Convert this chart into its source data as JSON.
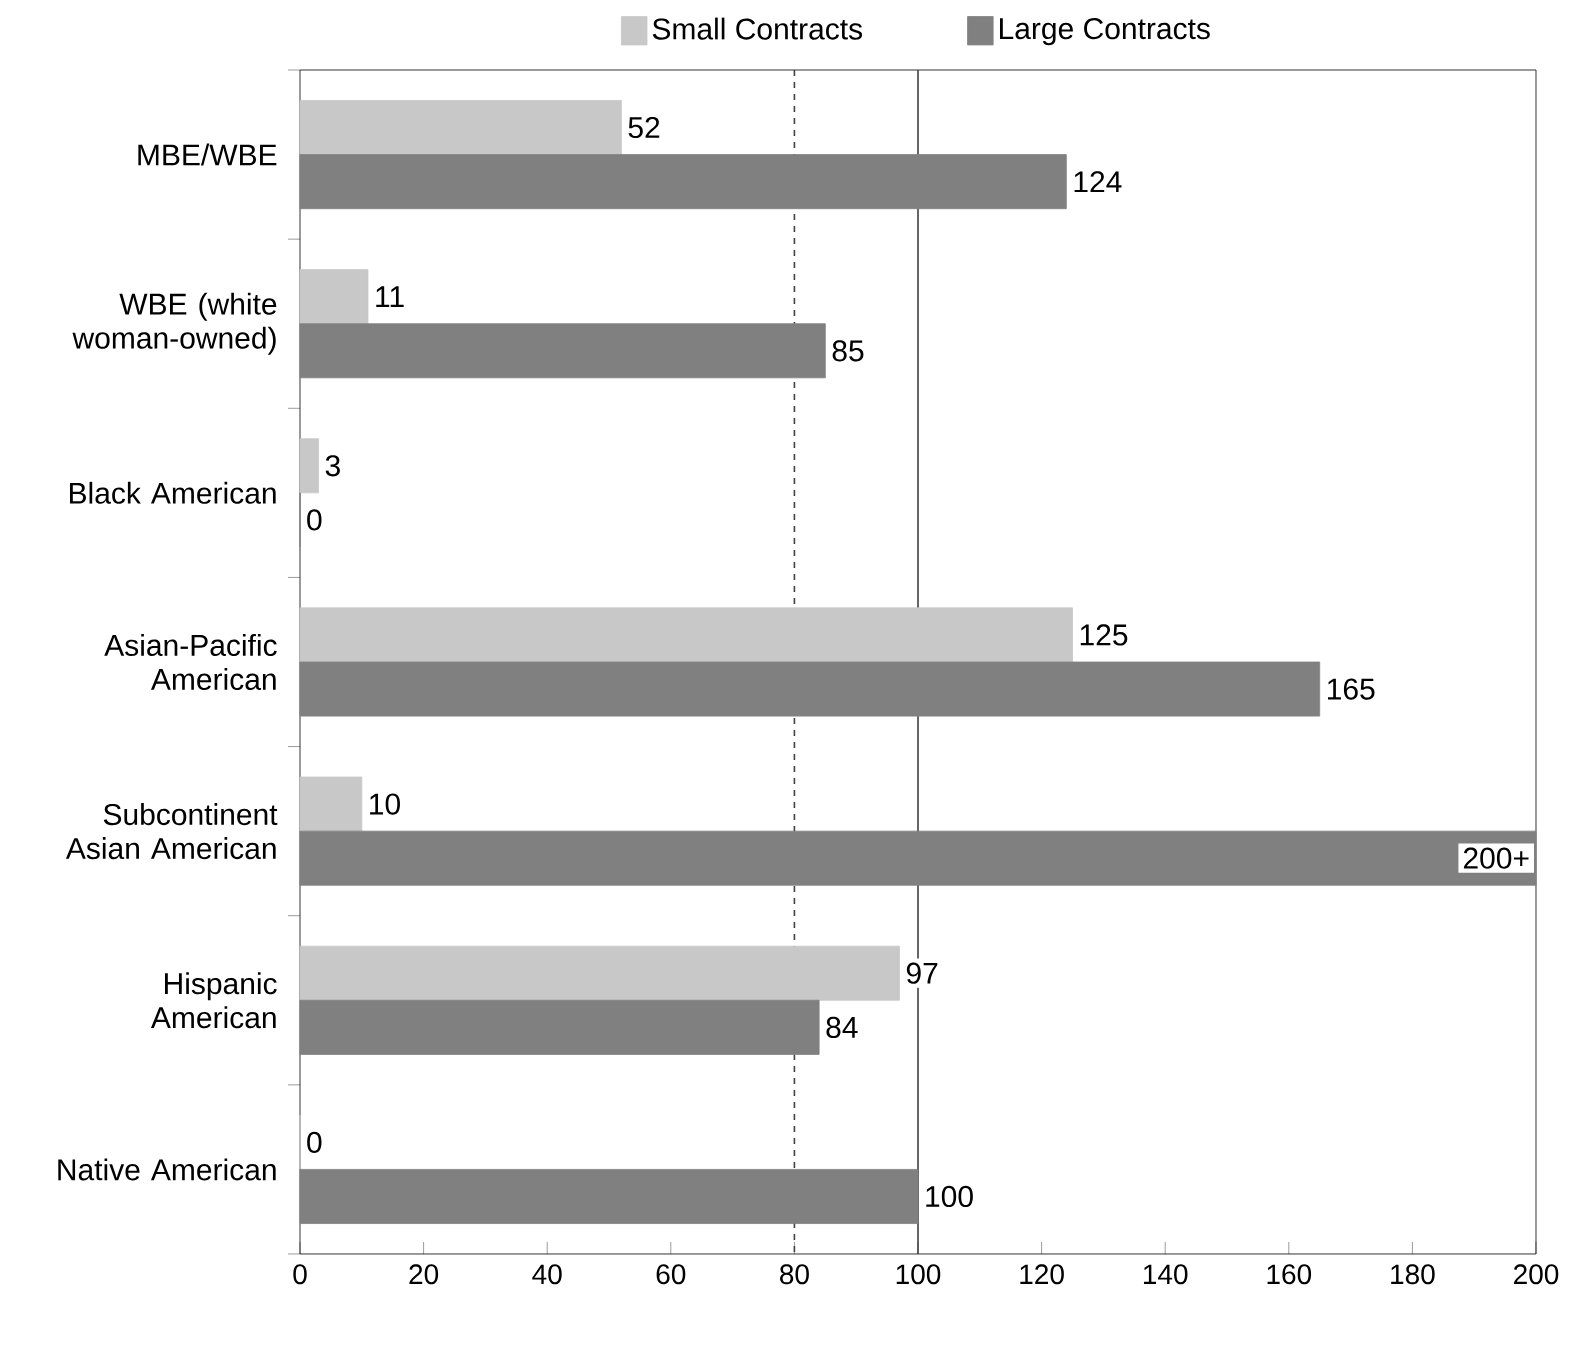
{
  "chart_data": {
    "type": "bar",
    "orientation": "horizontal",
    "categories": [
      "MBE/WBE",
      "WBE (white woman-owned)",
      "Black American",
      "Asian-Pacific American",
      "Subcontinent Asian American",
      "Hispanic American",
      "Native American"
    ],
    "series": [
      {
        "name": "Small Contracts",
        "color": "#c8c8c8",
        "values": [
          52,
          11,
          3,
          125,
          10,
          97,
          0
        ],
        "value_labels": [
          "52",
          "11",
          "3",
          "125",
          "10",
          "97",
          "0"
        ]
      },
      {
        "name": "Large Contracts",
        "color": "#808080",
        "values": [
          124,
          85,
          0,
          165,
          200,
          84,
          100
        ],
        "value_labels": [
          "124",
          "85",
          "0",
          "165",
          "200+",
          "84",
          "100"
        ]
      }
    ],
    "xlim": [
      0,
      200
    ],
    "xticks": [
      0,
      20,
      40,
      60,
      80,
      100,
      120,
      140,
      160,
      180,
      200
    ],
    "ref_lines": [
      {
        "axis": "x",
        "value": 80,
        "line_style": "dashed",
        "color": "#404040"
      },
      {
        "axis": "x",
        "value": 100,
        "line_style": "solid",
        "color": "#404040"
      }
    ],
    "legend": "top",
    "grid": false
  }
}
